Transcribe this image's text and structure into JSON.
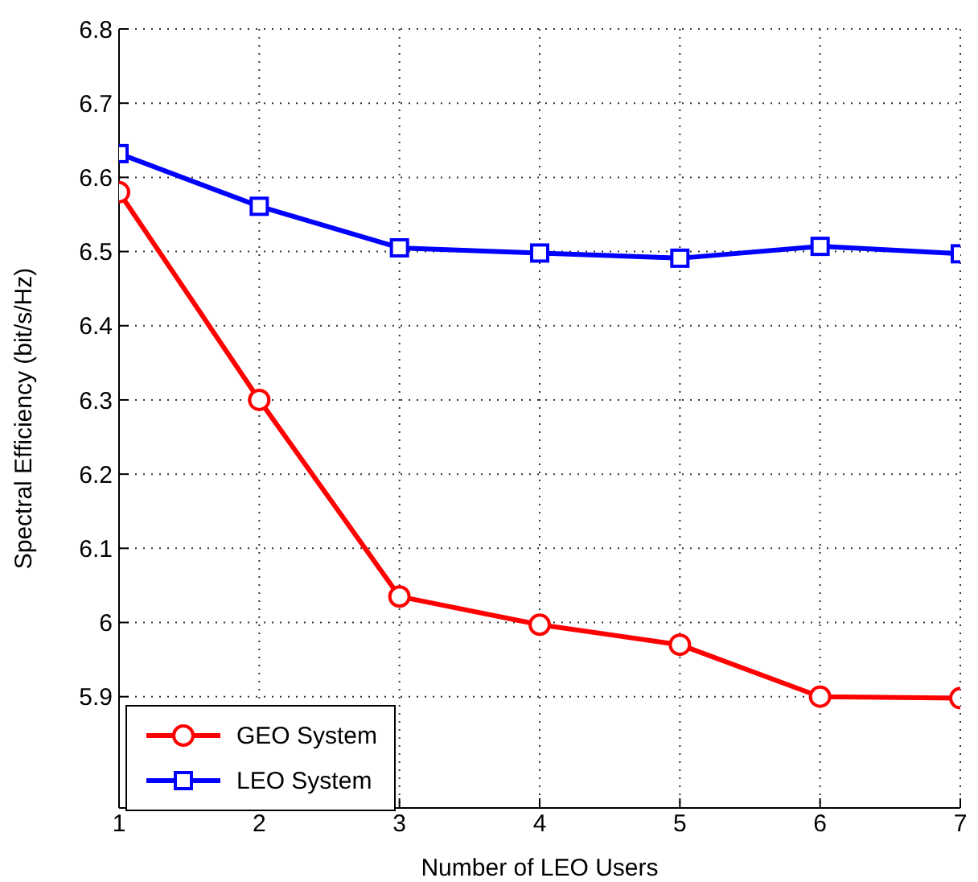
{
  "chart_data": {
    "type": "line",
    "xlabel": "Number of LEO Users",
    "ylabel": "Spectral Efficiency (bit/s/Hz)",
    "x": [
      1,
      2,
      3,
      4,
      5,
      6,
      7
    ],
    "series": [
      {
        "name": "GEO System",
        "color": "#ff0000",
        "marker": "circle",
        "values": [
          6.58,
          6.3,
          6.035,
          5.997,
          5.97,
          5.9,
          5.898
        ]
      },
      {
        "name": "LEO System",
        "color": "#0000ff",
        "marker": "square",
        "values": [
          6.632,
          6.561,
          6.505,
          6.498,
          6.491,
          6.507,
          6.497
        ]
      }
    ],
    "xlim": [
      1,
      7
    ],
    "xticks": [
      1,
      2,
      3,
      4,
      5,
      6,
      7
    ],
    "ylim": [
      5.75,
      6.8
    ],
    "yticks": [
      5.9,
      6,
      6.1,
      6.2,
      6.3,
      6.4,
      6.5,
      6.6,
      6.7,
      6.8
    ],
    "grid": true,
    "legend": "bottom left",
    "line_style": "solid"
  }
}
